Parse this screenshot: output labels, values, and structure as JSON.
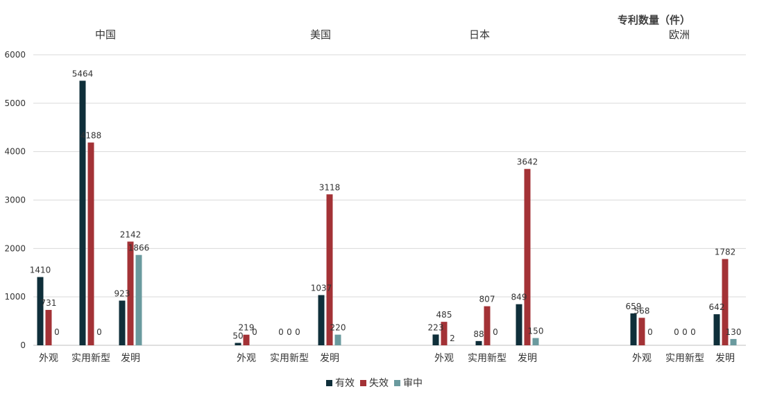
{
  "chart_data": {
    "type": "bar",
    "title": "专利数量（件）",
    "ylim": [
      0,
      6000
    ],
    "yticks": [
      0,
      1000,
      2000,
      3000,
      4000,
      5000,
      6000
    ],
    "grid": true,
    "legend_placement": "bottom",
    "regions": [
      "中国",
      "美国",
      "日本",
      "欧洲"
    ],
    "categories": [
      "外观",
      "实用新型",
      "发明"
    ],
    "series": [
      {
        "name": "有效",
        "color": "#0f2f3a",
        "values": [
          [
            1410,
            5464,
            923
          ],
          [
            50,
            0,
            1037
          ],
          [
            223,
            88,
            849
          ],
          [
            659,
            0,
            642
          ]
        ]
      },
      {
        "name": "失效",
        "color": "#a33236",
        "values": [
          [
            731,
            4188,
            2142
          ],
          [
            219,
            0,
            3118
          ],
          [
            485,
            807,
            3642
          ],
          [
            568,
            0,
            1782
          ]
        ]
      },
      {
        "name": "审中",
        "color": "#6a9a9e",
        "values": [
          [
            0,
            0,
            1866
          ],
          [
            0,
            0,
            220
          ],
          [
            2,
            0,
            150
          ],
          [
            0,
            0,
            130
          ]
        ]
      }
    ]
  }
}
